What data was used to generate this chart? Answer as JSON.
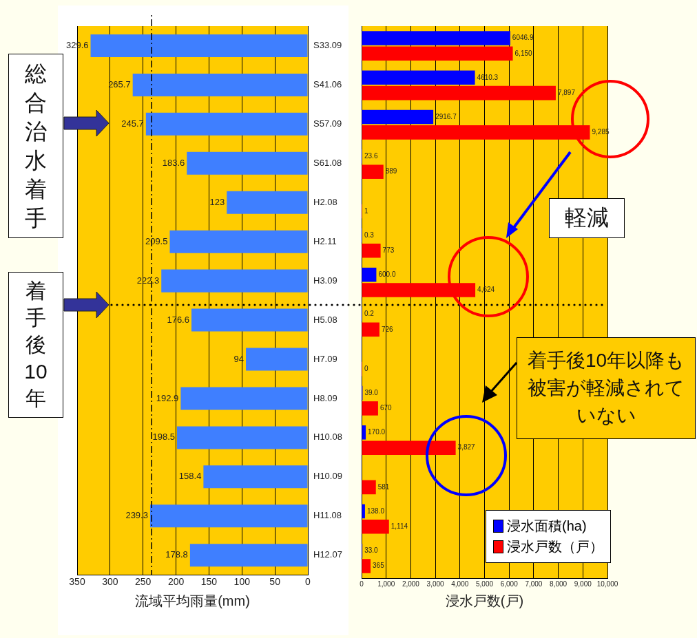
{
  "chart_data": [
    {
      "type": "bar",
      "orientation": "horizontal",
      "xlabel": "流域平均雨量(mm)",
      "categories": [
        "S33.09",
        "S41.06",
        "S57.09",
        "S61.08",
        "H2.08",
        "H2.11",
        "H3.09",
        "H5.08",
        "H7.09",
        "H8.09",
        "H10.08",
        "H10.09",
        "H11.08",
        "H12.07"
      ],
      "values": [
        329.6,
        265.7,
        245.7,
        183.6,
        123,
        209.5,
        222.3,
        176.6,
        94,
        192.9,
        198.5,
        158.4,
        239.3,
        178.8
      ],
      "color": "#3f7fff",
      "data_labels": true,
      "xlim": [
        350,
        0
      ],
      "xticks": [
        0,
        50,
        100,
        150,
        200,
        250,
        300,
        350
      ],
      "grid": "x",
      "ref_lines": [
        {
          "axis": "x",
          "value": 237,
          "line_style": "dashed",
          "color": "#000000"
        }
      ],
      "annotations": [
        "総合治水着手",
        "着手後10年"
      ]
    },
    {
      "type": "bar",
      "orientation": "horizontal",
      "xlabel": "浸水戸数(戸)",
      "categories": [
        null,
        null,
        null,
        null,
        null,
        null,
        null,
        null,
        null,
        null,
        null,
        null,
        null,
        null
      ],
      "series": [
        {
          "name": "浸水面積(ha)",
          "color": "#0000ff",
          "values": [
            6046.9,
            4610.3,
            2916.7,
            23.6,
            null,
            0.3,
            600.0,
            0.2,
            null,
            39.0,
            170.0,
            null,
            138.0,
            33.0
          ],
          "value_labels": [
            "6046.9",
            "4610.3",
            "2916.7",
            "23.6",
            null,
            "0.3",
            "600.0",
            "0.2",
            null,
            "39.0",
            "170.0",
            null,
            "138.0",
            "33.0"
          ]
        },
        {
          "name": "浸水戸数（戸）",
          "color": "#ff0000",
          "values": [
            6150,
            7897,
            9285,
            889,
            1,
            773,
            4624,
            726,
            0,
            670,
            3827,
            581,
            1114,
            365
          ],
          "value_labels": [
            "6,150",
            "7,897",
            "9,285",
            "889",
            "1",
            "773",
            "4,624",
            "726",
            "0",
            "670",
            "3,827",
            "581",
            "1,114",
            "365"
          ]
        }
      ],
      "xlim": [
        0,
        10000
      ],
      "xticks": [
        0,
        {
          "value": 1000,
          "label": "1,000"
        },
        {
          "value": 2000,
          "label": "2,000"
        },
        {
          "value": 3000,
          "label": "3,000"
        },
        {
          "value": 4000,
          "label": "4,000"
        },
        {
          "value": 5000,
          "label": "5,000"
        },
        {
          "value": 6000,
          "label": "6,000"
        },
        {
          "value": 7000,
          "label": "7,000"
        },
        {
          "value": 8000,
          "label": "8,000"
        },
        {
          "value": 9000,
          "label": "9,000"
        },
        {
          "value": 10000,
          "label": "10,000"
        }
      ],
      "grid": "x",
      "tick_labels": "x",
      "legend": "bottom right",
      "annotations": [
        "軽減",
        "着手後10年以降も被害が軽減されていない"
      ]
    }
  ]
}
